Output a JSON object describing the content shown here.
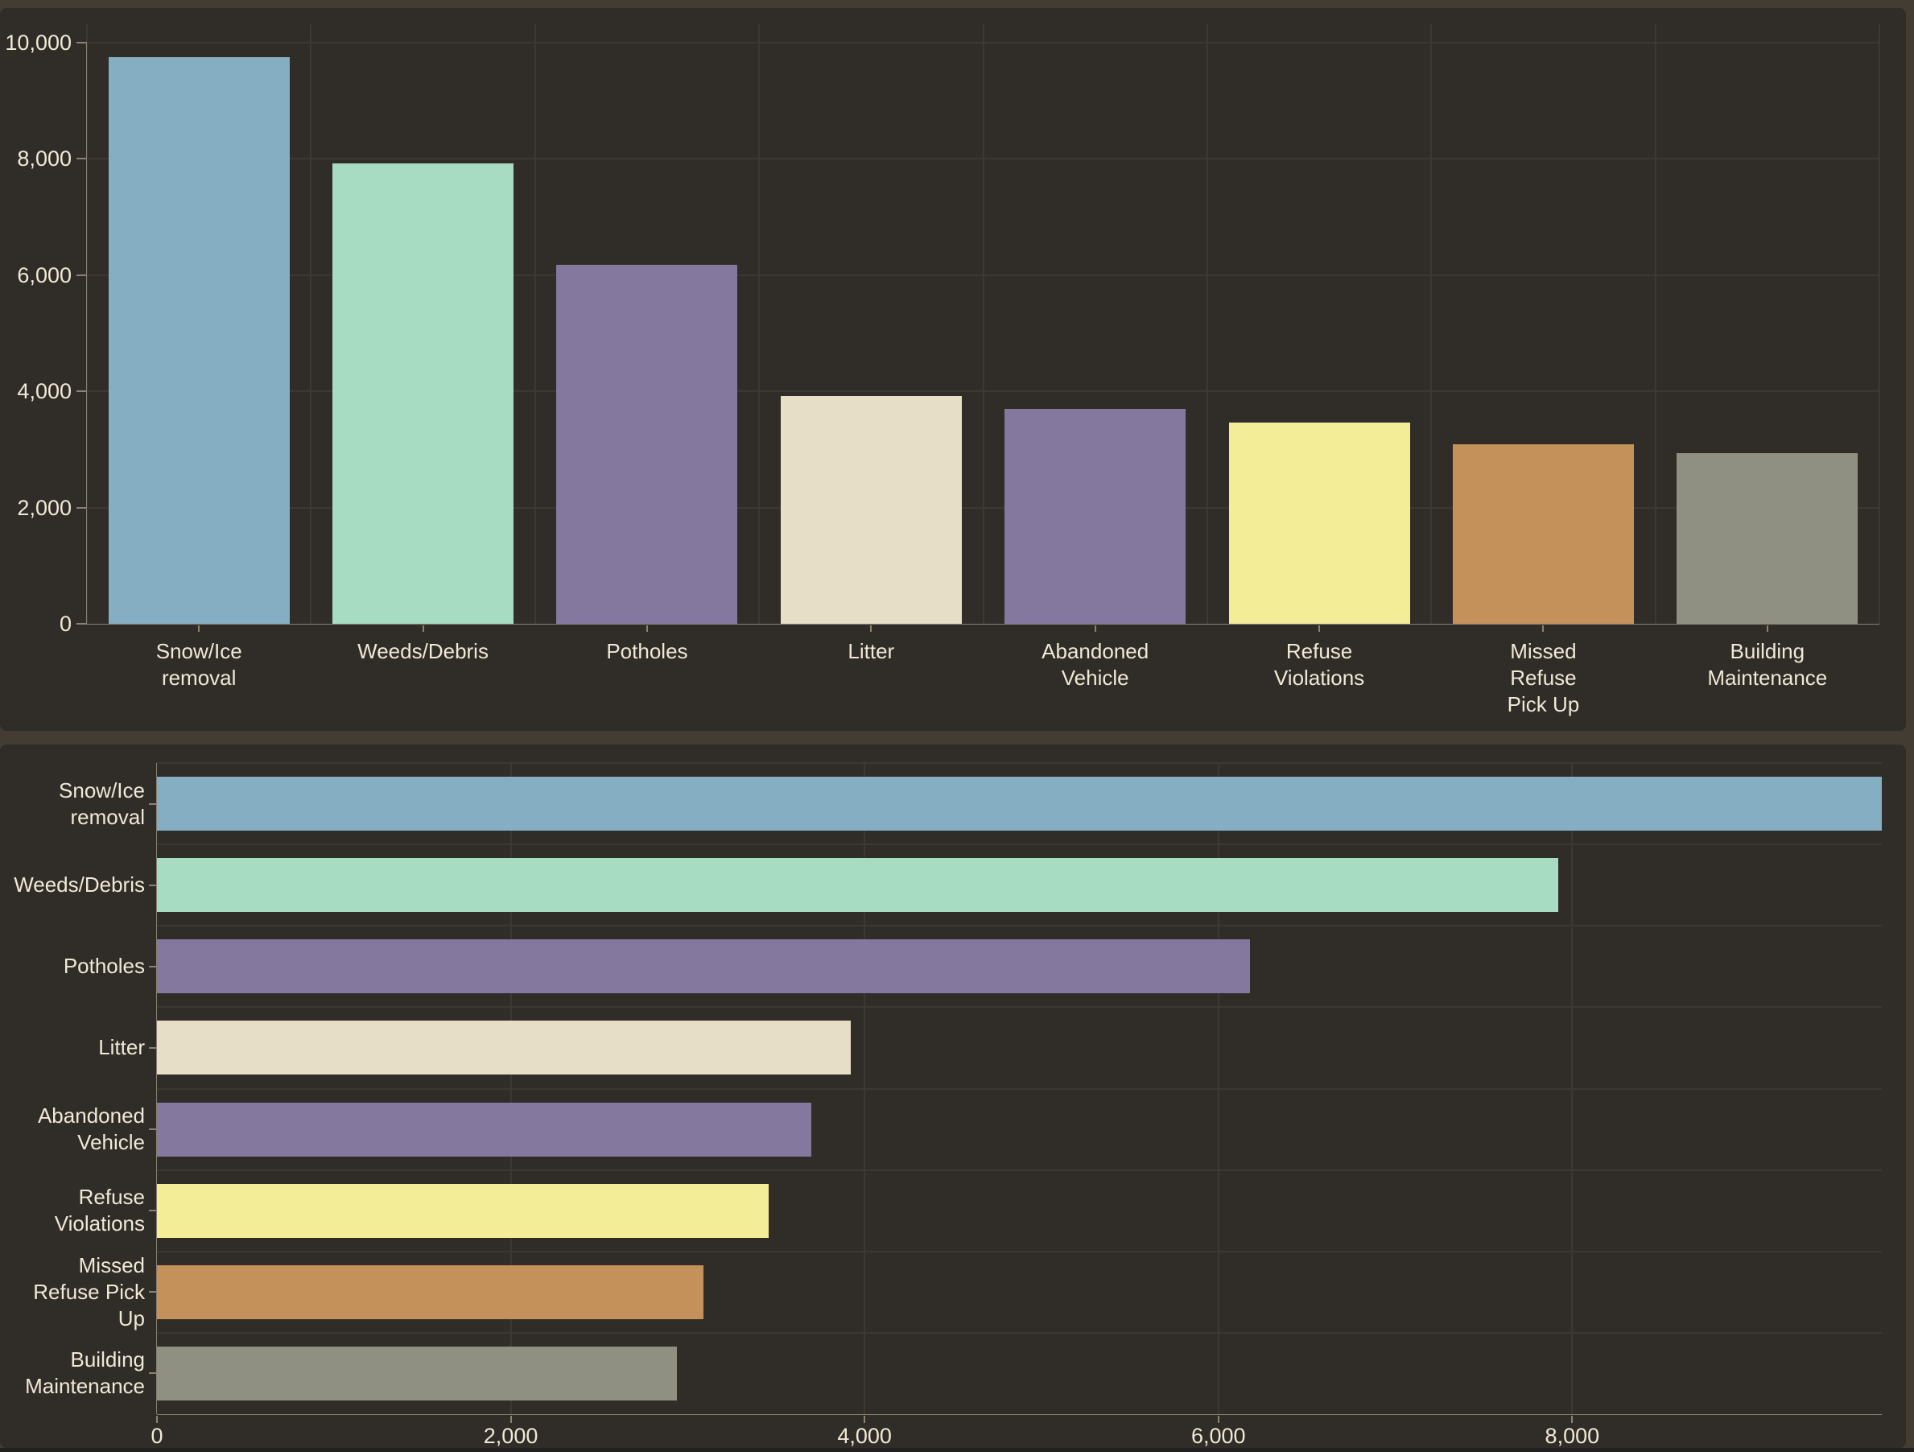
{
  "theme": {
    "page_background": "#423c33",
    "panel_background": "#302c27",
    "gridline_color": "#3d3831",
    "axis_line_color": "#878073",
    "tick_color": "#8b8274",
    "text_color": "#f1e9d7",
    "bottom_strip_color": "#232120"
  },
  "chart_data": [
    {
      "type": "bar",
      "orientation": "vertical",
      "title": "",
      "categories": [
        "Snow/Ice removal",
        "Weeds/Debris",
        "Potholes",
        "Litter",
        "Abandoned Vehicle",
        "Refuse Violations",
        "Missed Refuse Pick Up",
        "Building Maintenance"
      ],
      "category_label_lines": [
        [
          "Snow/Ice",
          "removal"
        ],
        [
          "Weeds/Debris"
        ],
        [
          "Potholes"
        ],
        [
          "Litter"
        ],
        [
          "Abandoned",
          "Vehicle"
        ],
        [
          "Refuse",
          "Violations"
        ],
        [
          "Missed",
          "Refuse",
          "Pick Up"
        ],
        [
          "Building",
          "Maintenance"
        ]
      ],
      "values": [
        9750,
        7920,
        6180,
        3920,
        3700,
        3460,
        3090,
        2940
      ],
      "bar_colors": [
        "#85aec2",
        "#a7dcc2",
        "#84789e",
        "#e7dec7",
        "#84789e",
        "#f4ed98",
        "#c4915b",
        "#8f9082"
      ],
      "ylim": [
        0,
        10000
      ],
      "yticks": [
        {
          "value": 0,
          "label": "0"
        },
        {
          "value": 2000,
          "label": "2,000"
        },
        {
          "value": 4000,
          "label": "4,000"
        },
        {
          "value": 6000,
          "label": "6,000"
        },
        {
          "value": 8000,
          "label": "8,000"
        },
        {
          "value": 10000,
          "label": "10,000"
        }
      ],
      "grid": true,
      "legend": false
    },
    {
      "type": "bar",
      "orientation": "horizontal",
      "title": "",
      "categories": [
        "Snow/Ice removal",
        "Weeds/Debris",
        "Potholes",
        "Litter",
        "Abandoned Vehicle",
        "Refuse Violations",
        "Missed Refuse Pick Up",
        "Building Maintenance"
      ],
      "category_label_lines": [
        [
          "Snow/Ice",
          "removal"
        ],
        [
          "Weeds/Debris"
        ],
        [
          "Potholes"
        ],
        [
          "Litter"
        ],
        [
          "Abandoned",
          "Vehicle"
        ],
        [
          "Refuse",
          "Violations"
        ],
        [
          "Missed",
          "Refuse Pick",
          "Up"
        ],
        [
          "Building",
          "Maintenance"
        ]
      ],
      "values": [
        9750,
        7920,
        6180,
        3920,
        3700,
        3460,
        3090,
        2940
      ],
      "bar_colors": [
        "#85aec2",
        "#a7dcc2",
        "#84789e",
        "#e7dec7",
        "#84789e",
        "#f4ed98",
        "#c4915b",
        "#8f9082"
      ],
      "xlim": [
        0,
        9750
      ],
      "xticks": [
        {
          "value": 0,
          "label": "0"
        },
        {
          "value": 2000,
          "label": "2,000"
        },
        {
          "value": 4000,
          "label": "4,000"
        },
        {
          "value": 6000,
          "label": "6,000"
        },
        {
          "value": 8000,
          "label": "8,000"
        }
      ],
      "grid": true,
      "legend": false
    }
  ]
}
